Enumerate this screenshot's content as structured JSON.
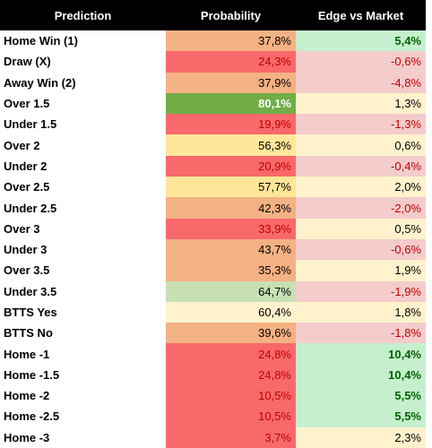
{
  "table": {
    "columns": [
      "Prediction",
      "Probability",
      "Edge vs Market"
    ],
    "rows": [
      {
        "cells": [
          "Home Win (1)",
          "37,8%",
          "5,4%"
        ],
        "bg": [
          "#f4b183",
          "#c6efce"
        ],
        "fg": [
          "#000000",
          "#006100"
        ]
      },
      {
        "cells": [
          "Draw (X)",
          "24,3%",
          "-0,6%"
        ],
        "bg": [
          "#f8696b",
          "#f4cccc"
        ],
        "fg": [
          "#c00000",
          "#c00000"
        ]
      },
      {
        "cells": [
          "Away Win (2)",
          "37,9%",
          "-4,8%"
        ],
        "bg": [
          "#f4b183",
          "#f4cccc"
        ],
        "fg": [
          "#000000",
          "#c00000"
        ]
      },
      {
        "cells": [
          "Over 1.5",
          "80,1%",
          "1,3%"
        ],
        "bg": [
          "#70ad47",
          "#fff2cc"
        ],
        "fg": [
          "#ffffff",
          "#000000"
        ]
      },
      {
        "cells": [
          "Under 1.5",
          "19,9%",
          "-1,3%"
        ],
        "bg": [
          "#f8696b",
          "#f4cccc"
        ],
        "fg": [
          "#c00000",
          "#c00000"
        ]
      },
      {
        "cells": [
          "Over 2",
          "56,3%",
          "0,6%"
        ],
        "bg": [
          "#ffe699",
          "#fff2cc"
        ],
        "fg": [
          "#000000",
          "#000000"
        ]
      },
      {
        "cells": [
          "Under 2",
          "20,9%",
          "-0,4%"
        ],
        "bg": [
          "#f8696b",
          "#f4cccc"
        ],
        "fg": [
          "#c00000",
          "#c00000"
        ]
      },
      {
        "cells": [
          "Over 2.5",
          "57,7%",
          "2,0%"
        ],
        "bg": [
          "#ffe699",
          "#fff2cc"
        ],
        "fg": [
          "#000000",
          "#000000"
        ]
      },
      {
        "cells": [
          "Under 2.5",
          "42,3%",
          "-2,0%"
        ],
        "bg": [
          "#f4b183",
          "#f4cccc"
        ],
        "fg": [
          "#000000",
          "#c00000"
        ]
      },
      {
        "cells": [
          "Over 3",
          "33,9%",
          "0,5%"
        ],
        "bg": [
          "#f8696b",
          "#fff2cc"
        ],
        "fg": [
          "#c00000",
          "#000000"
        ]
      },
      {
        "cells": [
          "Under 3",
          "43,7%",
          "-0,6%"
        ],
        "bg": [
          "#f4b183",
          "#f4cccc"
        ],
        "fg": [
          "#000000",
          "#c00000"
        ]
      },
      {
        "cells": [
          "Over 3.5",
          "35,3%",
          "1,9%"
        ],
        "bg": [
          "#f4b183",
          "#fff2cc"
        ],
        "fg": [
          "#000000",
          "#000000"
        ]
      },
      {
        "cells": [
          "Under 3.5",
          "64,7%",
          "-1,9%"
        ],
        "bg": [
          "#c6e0b4",
          "#f4cccc"
        ],
        "fg": [
          "#000000",
          "#c00000"
        ]
      },
      {
        "cells": [
          "BTTS Yes",
          "60,4%",
          "1,8%"
        ],
        "bg": [
          "#fff2cc",
          "#fff2cc"
        ],
        "fg": [
          "#000000",
          "#000000"
        ]
      },
      {
        "cells": [
          "BTTS No",
          "39,6%",
          "-1,8%"
        ],
        "bg": [
          "#f4b183",
          "#f4cccc"
        ],
        "fg": [
          "#000000",
          "#c00000"
        ]
      },
      {
        "cells": [
          "Home -1",
          "24,8%",
          "10,4%"
        ],
        "bg": [
          "#f8696b",
          "#c6efce"
        ],
        "fg": [
          "#c00000",
          "#006100"
        ]
      },
      {
        "cells": [
          "Home -1.5",
          "24,8%",
          "10,4%"
        ],
        "bg": [
          "#f8696b",
          "#c6efce"
        ],
        "fg": [
          "#c00000",
          "#006100"
        ]
      },
      {
        "cells": [
          "Home -2",
          "10,5%",
          "5,5%"
        ],
        "bg": [
          "#f8696b",
          "#c6efce"
        ],
        "fg": [
          "#c00000",
          "#006100"
        ]
      },
      {
        "cells": [
          "Home -2.5",
          "10,5%",
          "5,5%"
        ],
        "bg": [
          "#f8696b",
          "#c6efce"
        ],
        "fg": [
          "#c00000",
          "#006100"
        ]
      },
      {
        "cells": [
          "Home -3",
          "3,7%",
          "2,3%"
        ],
        "bg": [
          "#f8696b",
          "#fff2cc"
        ],
        "fg": [
          "#c00000",
          "#000000"
        ]
      }
    ]
  }
}
